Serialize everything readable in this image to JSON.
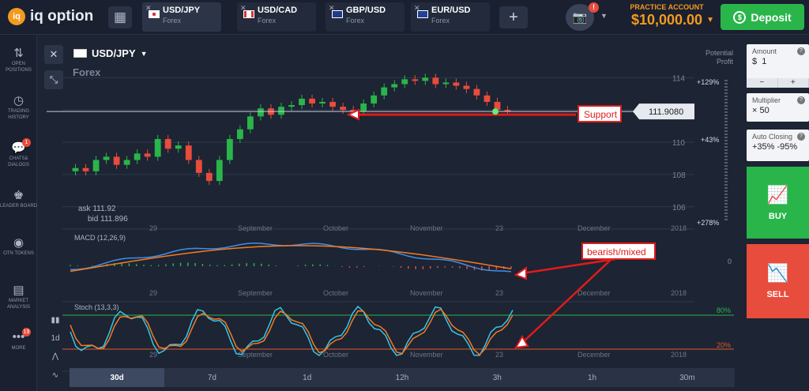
{
  "app": {
    "logo_mark": "iq",
    "logo_text": "iq option"
  },
  "tabs": [
    {
      "pair": "USD/JPY",
      "category": "Forex",
      "active": true
    },
    {
      "pair": "USD/CAD",
      "category": "Forex",
      "active": false
    },
    {
      "pair": "GBP/USD",
      "category": "Forex",
      "active": false
    },
    {
      "pair": "EUR/USD",
      "category": "Forex",
      "active": false
    }
  ],
  "account": {
    "label": "PRACTICE ACCOUNT",
    "balance": "$10,000.00",
    "notification_badge": "!"
  },
  "deposit": {
    "label": "Deposit"
  },
  "sidebar": [
    {
      "label": "OPEN POSITIONS",
      "icon": "open-positions-icon"
    },
    {
      "label": "TRADING HISTORY",
      "icon": "history-icon"
    },
    {
      "label": "CHATS& DIALOGS",
      "icon": "chat-icon",
      "badge": "1"
    },
    {
      "label": "LEADER BOARD",
      "icon": "leaderboard-icon"
    },
    {
      "label": "OTN TOKENS",
      "icon": "token-icon"
    },
    {
      "label": "MARKET ANALYSIS",
      "icon": "news-icon"
    },
    {
      "label": "MORE",
      "icon": "more-icon",
      "badge": "19"
    }
  ],
  "asset": {
    "name": "USD/JPY",
    "category": "Forex"
  },
  "potential_profit": "Potential Profit",
  "ask": "ask 111.92",
  "bid": "bid 111.896",
  "price_tag": "111.9080",
  "annotations": {
    "support": "Support",
    "bearish": "bearish/mixed"
  },
  "profit_levels": [
    "+129%",
    "+43%",
    "+278%"
  ],
  "right_panel": {
    "amount_label": "Amount",
    "amount_currency": "$",
    "amount_value": "1",
    "multiplier_label": "Multiplier",
    "multiplier_value": "× 50",
    "auto_closing_label": "Auto Closing",
    "auto_closing_value": "+35% -95%",
    "buy": "BUY",
    "sell": "SELL"
  },
  "indicators": {
    "macd": "MACD (12,26,9)",
    "stoch": "Stoch (13,3,3)",
    "stoch_levels": [
      "80%",
      "20%"
    ],
    "macd_zero": "0"
  },
  "timeframes": [
    "30d",
    "7d",
    "1d",
    "12h",
    "3h",
    "1h",
    "30m"
  ],
  "tools": [
    "1d"
  ],
  "chart_data": {
    "type": "line",
    "price_y_ticks": [
      114,
      112,
      110,
      108,
      106
    ],
    "x_tick_labels": [
      "29",
      "September",
      "October",
      "November",
      "23",
      "December",
      "2018"
    ],
    "support_level": 111.908,
    "close_approx": [
      108.4,
      108.2,
      108.9,
      109.1,
      108.6,
      108.9,
      109.3,
      109.1,
      110.2,
      109.6,
      109.8,
      108.9,
      108.1,
      107.6,
      108.9,
      110.2,
      110.8,
      111.6,
      112.1,
      111.7,
      112.2,
      112.3,
      112.7,
      112.4,
      112.5,
      112.2,
      112.0,
      111.9,
      112.4,
      112.9,
      113.4,
      113.6,
      113.9,
      113.8,
      114.0,
      113.6,
      113.7,
      113.5,
      113.3,
      112.9,
      112.5,
      112.0,
      111.9
    ],
    "macd_description": "MACD falling below zero line",
    "stoch_description": "Stochastic near 20% oversold"
  },
  "colors": {
    "bg": "#1d2433",
    "up": "#2ab54b",
    "down": "#e74c3c",
    "accent": "#f39a1e",
    "macd": "#3f8fe8",
    "signal": "#f47a22"
  }
}
